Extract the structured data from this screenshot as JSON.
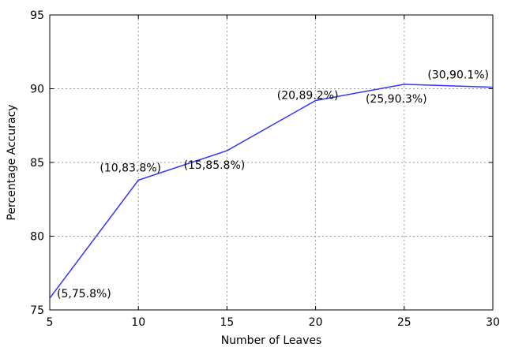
{
  "chart_data": {
    "type": "line",
    "xlabel": "Number of Leaves",
    "ylabel": "Percentage Accuracy",
    "xlim": [
      5,
      30
    ],
    "ylim": [
      75,
      95
    ],
    "xticks": [
      "5",
      "10",
      "15",
      "20",
      "25",
      "30"
    ],
    "yticks": [
      "75",
      "80",
      "85",
      "90",
      "95"
    ],
    "grid": true,
    "series": [
      {
        "x": [
          5,
          10,
          15,
          20,
          25,
          30
        ],
        "y": [
          75.8,
          83.8,
          85.8,
          89.2,
          90.3,
          90.1
        ],
        "color": "#3333ff"
      }
    ],
    "annotations": [
      "(5,75.8%)",
      "(10,83.8%)",
      "(15,85.8%)",
      "(20,89.2%)",
      "(25,90.3%)",
      "(30,90.1%)"
    ]
  }
}
